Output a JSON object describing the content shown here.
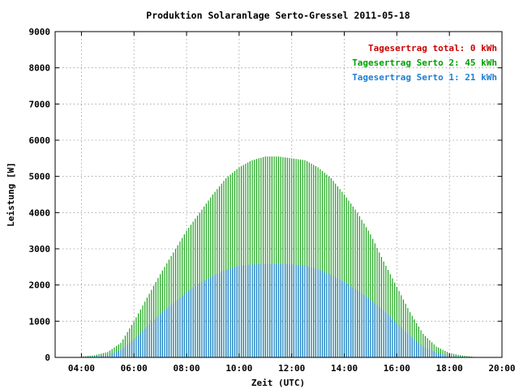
{
  "chart_data": {
    "type": "bar",
    "title": "Produktion Solaranlage Serto-Gressel 2011-05-18",
    "xlabel": "Zeit (UTC)",
    "ylabel": "Leistung [W]",
    "xlim_hours": [
      3,
      20
    ],
    "ylim": [
      0,
      9000
    ],
    "x_ticks": [
      "04:00",
      "06:00",
      "08:00",
      "10:00",
      "12:00",
      "14:00",
      "16:00",
      "18:00",
      "20:00"
    ],
    "x_tick_hours": [
      4,
      6,
      8,
      10,
      12,
      14,
      16,
      18,
      20
    ],
    "y_ticks": [
      0,
      1000,
      2000,
      3000,
      4000,
      5000,
      6000,
      7000,
      8000,
      9000
    ],
    "grid": true,
    "legend_position": "top-right",
    "legend": [
      {
        "label": "Tagesertrag total: 0 kWh",
        "color": "#cc0000"
      },
      {
        "label": "Tagesertrag Serto 2: 45 kWh",
        "color": "#00a000"
      },
      {
        "label": "Tagesertrag Serto 1: 21 kWh",
        "color": "#1e7fd4"
      }
    ],
    "series": [
      {
        "name": "Serto 2",
        "color": "#1aa31a",
        "x": [
          "04:00",
          "04:30",
          "05:00",
          "05:30",
          "06:00",
          "06:30",
          "07:00",
          "07:30",
          "08:00",
          "08:30",
          "09:00",
          "09:30",
          "10:00",
          "10:30",
          "11:00",
          "11:30",
          "12:00",
          "12:30",
          "13:00",
          "13:30",
          "14:00",
          "14:30",
          "15:00",
          "15:30",
          "16:00",
          "16:30",
          "17:00",
          "17:30",
          "18:00",
          "18:30",
          "19:00"
        ],
        "values": [
          20,
          60,
          150,
          400,
          1000,
          1650,
          2300,
          2900,
          3500,
          4000,
          4500,
          4950,
          5250,
          5450,
          5550,
          5550,
          5500,
          5450,
          5250,
          4950,
          4500,
          4000,
          3400,
          2650,
          1950,
          1250,
          650,
          300,
          120,
          50,
          10
        ]
      },
      {
        "name": "Serto 1",
        "color": "#1e7fd4",
        "x": [
          "04:00",
          "04:30",
          "05:00",
          "05:30",
          "06:00",
          "06:30",
          "07:00",
          "07:30",
          "08:00",
          "08:30",
          "09:00",
          "09:30",
          "10:00",
          "10:30",
          "11:00",
          "11:30",
          "12:00",
          "12:30",
          "13:00",
          "13:30",
          "14:00",
          "14:30",
          "15:00",
          "15:30",
          "16:00",
          "16:30",
          "17:00",
          "17:30",
          "18:00",
          "18:30",
          "19:00"
        ],
        "values": [
          10,
          30,
          70,
          200,
          500,
          850,
          1200,
          1500,
          1800,
          2050,
          2250,
          2420,
          2530,
          2570,
          2580,
          2580,
          2570,
          2540,
          2440,
          2280,
          2080,
          1850,
          1600,
          1300,
          950,
          600,
          300,
          130,
          50,
          20,
          5
        ]
      }
    ]
  }
}
